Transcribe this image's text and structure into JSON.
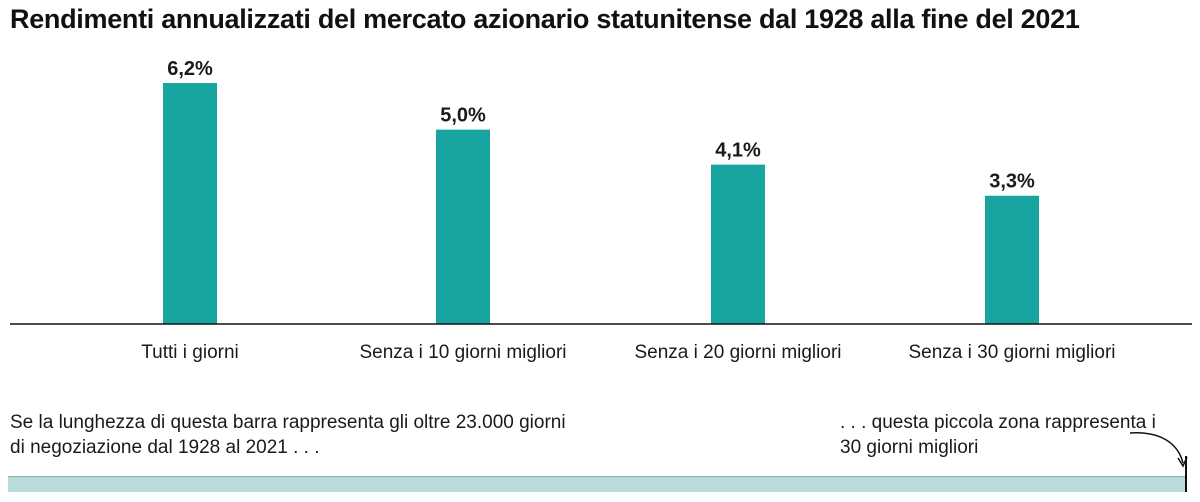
{
  "title": "Rendimenti annualizzati del mercato azionario statunitense dal 1928 alla fine del 2021",
  "colors": {
    "bar": "#18a4a0",
    "axis": "#111111",
    "strip": "#b9dcdb"
  },
  "chart_data": {
    "type": "bar",
    "title": "Rendimenti annualizzati del mercato azionario statunitense dal 1928 alla fine del 2021",
    "categories": [
      "Tutti i giorni",
      "Senza i 10 giorni migliori",
      "Senza i 20 giorni migliori",
      "Senza i 30 giorni migliori"
    ],
    "values": [
      6.2,
      5.0,
      4.1,
      3.3
    ],
    "value_labels": [
      "6,2%",
      "5,0%",
      "4,1%",
      "3,3%"
    ],
    "xlabel": "",
    "ylabel": "",
    "ylim": [
      0,
      6.2
    ],
    "grid": false
  },
  "notes": {
    "left": "Se la lunghezza di questa barra rappresenta gli oltre 23.000 giorni di negoziazione dal 1928 al 2021 . . .",
    "right": ". . . questa piccola zona rappresenta i 30 giorni migliori"
  }
}
